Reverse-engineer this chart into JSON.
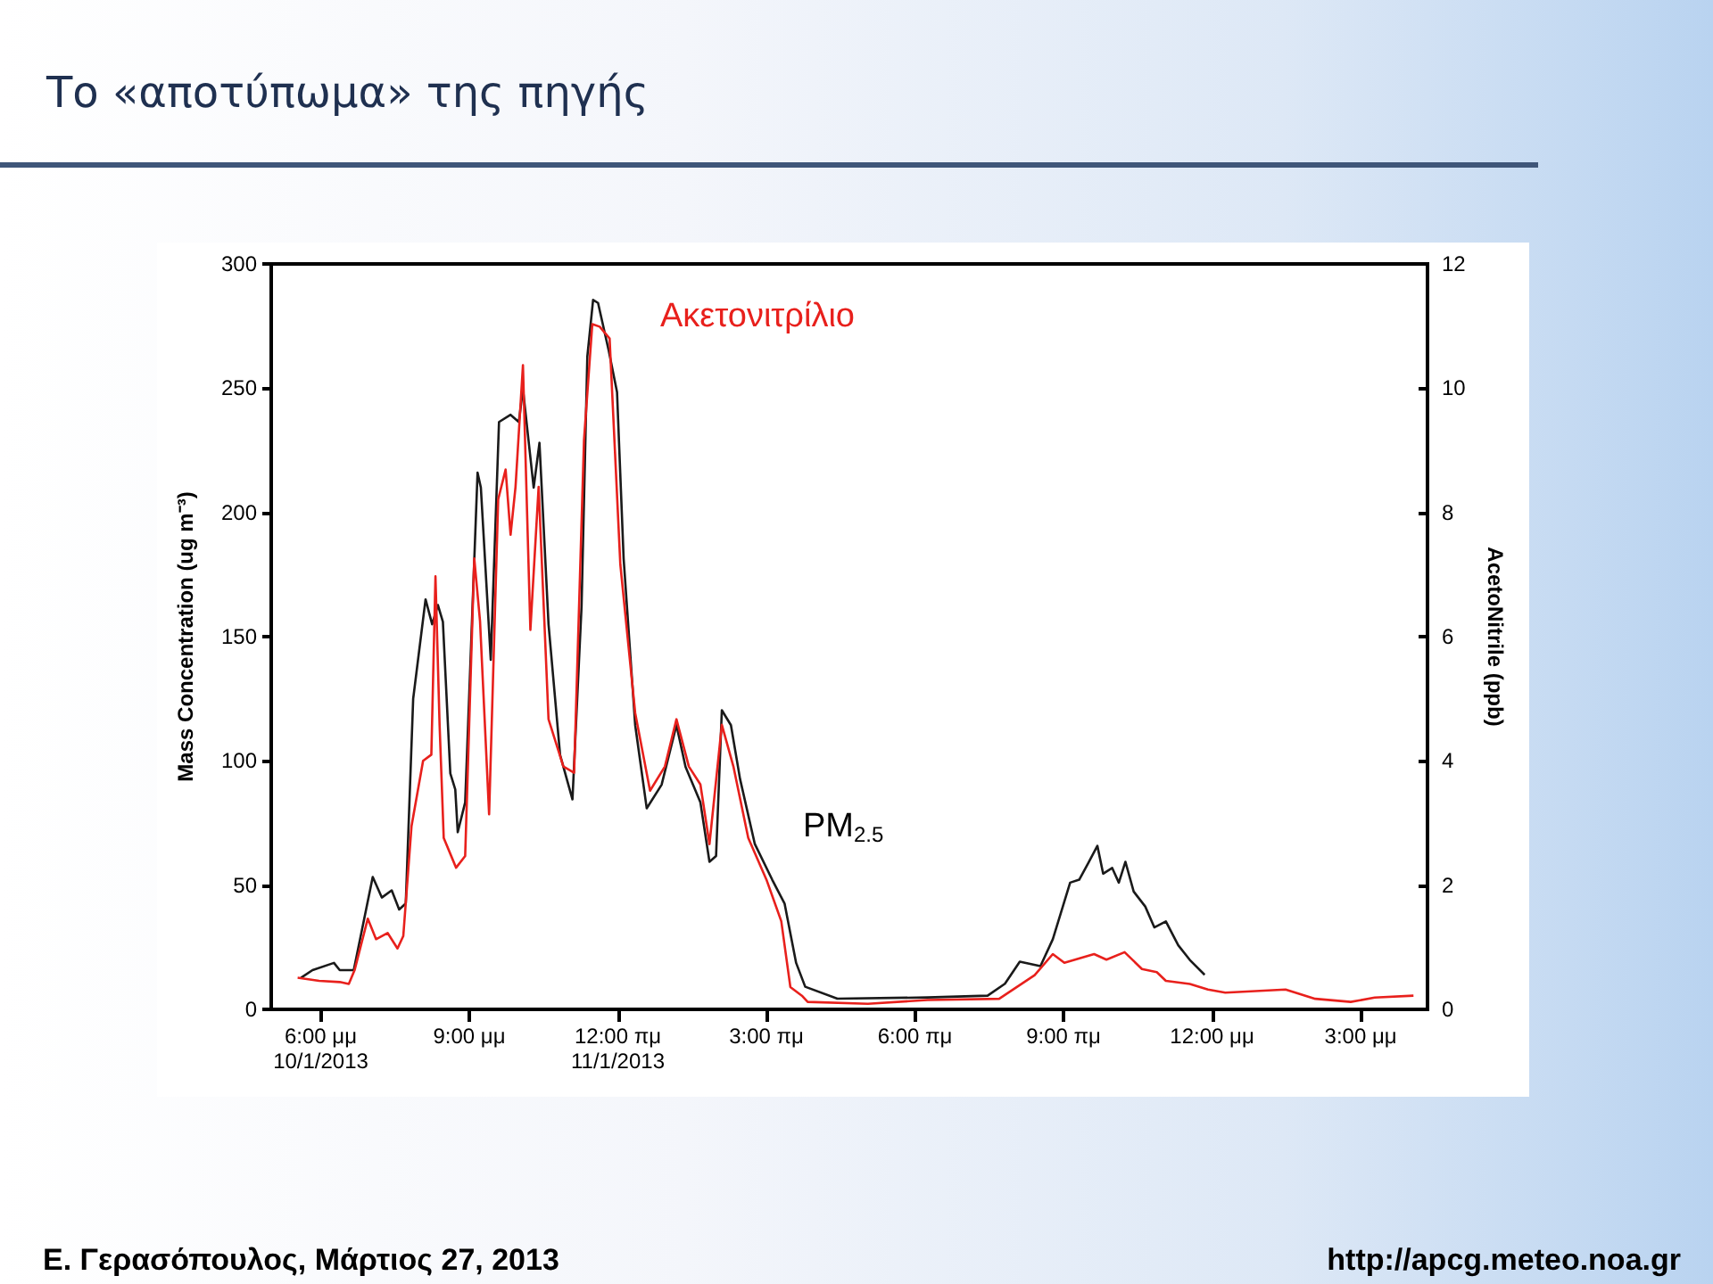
{
  "chart_data": {
    "type": "line",
    "title": "Το «αποτύπωμα» της πηγής",
    "ylabel": "Mass Concentration (ug m⁻³)",
    "y2label": "AcetoNitrile (ppb)",
    "annotations": [
      "Ε. Γερασόπουλος, Μάρτιος 27, 2013",
      "http://apcg.meteo.noa.gr"
    ],
    "xlim": [
      "2013-01-10T17:00",
      "2013-01-11T16:21"
    ],
    "xticks": [
      {
        "value": "2013-01-10T18:00",
        "label": "6:00 μμ\n10/1/2013"
      },
      {
        "value": "2013-01-10T21:00",
        "label": "9:00 μμ"
      },
      {
        "value": "2013-01-11T00:00",
        "label": "12:00 πμ\n11/1/2013"
      },
      {
        "value": "2013-01-11T03:00",
        "label": "3:00 πμ"
      },
      {
        "value": "2013-01-11T06:00",
        "label": "6:00 πμ"
      },
      {
        "value": "2013-01-11T09:00",
        "label": "9:00 πμ"
      },
      {
        "value": "2013-01-11T12:00",
        "label": "12:00 μμ"
      },
      {
        "value": "2013-01-11T15:00",
        "label": "3:00 μμ"
      }
    ],
    "ylim": [
      0,
      300
    ],
    "yticks": [
      0,
      50,
      100,
      150,
      200,
      250,
      300
    ],
    "y2lim": [
      0,
      12
    ],
    "y2ticks": [
      0,
      2,
      4,
      6,
      8,
      10,
      12
    ],
    "grid": false,
    "legend": false,
    "marker": "none",
    "line_style": "solid",
    "series": [
      {
        "name": "PM$_{2.5}$",
        "color": "#1a1a1a",
        "x": [
          "2013-01-10T17:36",
          "2013-01-10T17:50",
          "2013-01-10T18:16",
          "2013-01-10T18:23",
          "2013-01-10T18:40",
          "2013-01-10T19:03",
          "2013-01-10T19:14",
          "2013-01-10T19:26",
          "2013-01-10T19:35",
          "2013-01-10T19:43",
          "2013-01-10T19:52",
          "2013-01-10T20:07",
          "2013-01-10T20:15",
          "2013-01-10T20:22",
          "2013-01-10T20:28",
          "2013-01-10T20:37",
          "2013-01-10T20:43",
          "2013-01-10T20:46",
          "2013-01-10T20:55",
          "2013-01-10T21:10",
          "2013-01-10T21:14",
          "2013-01-10T21:26",
          "2013-01-10T21:36",
          "2013-01-10T21:50",
          "2013-01-10T22:00",
          "2013-01-10T22:05",
          "2013-01-10T22:18",
          "2013-01-10T22:25",
          "2013-01-10T22:36",
          "2013-01-10T22:50",
          "2013-01-10T23:05",
          "2013-01-10T23:16",
          "2013-01-10T23:23",
          "2013-01-10T23:30",
          "2013-01-10T23:36",
          "2013-01-10T23:49",
          "2013-01-10T23:59",
          "2013-01-11T00:07",
          "2013-01-11T00:21",
          "2013-01-11T00:35",
          "2013-01-11T00:53",
          "2013-01-11T01:11",
          "2013-01-11T01:22",
          "2013-01-11T01:40",
          "2013-01-11T01:51",
          "2013-01-11T01:59",
          "2013-01-11T02:06",
          "2013-01-11T02:17",
          "2013-01-11T02:28",
          "2013-01-11T02:46",
          "2013-01-11T03:07",
          "2013-01-11T03:22",
          "2013-01-11T03:36",
          "2013-01-11T03:47",
          "2013-01-11T04:26",
          "2013-01-11T06:15",
          "2013-01-11T07:28",
          "2013-01-11T07:49",
          "2013-01-11T08:07",
          "2013-01-11T08:32",
          "2013-01-11T08:47",
          "2013-01-11T09:08",
          "2013-01-11T09:19",
          "2013-01-11T09:30",
          "2013-01-11T09:41",
          "2013-01-11T09:48",
          "2013-01-11T09:59",
          "2013-01-11T10:07",
          "2013-01-11T10:15",
          "2013-01-11T10:25",
          "2013-01-11T10:39",
          "2013-01-11T10:50",
          "2013-01-11T11:04",
          "2013-01-11T11:19",
          "2013-01-11T11:33",
          "2013-01-11T11:51"
        ],
        "values": [
          12.7,
          15.8,
          18.7,
          15.8,
          15.8,
          53.3,
          45.0,
          47.9,
          40.2,
          42.6,
          125.0,
          165.0,
          155.0,
          162.7,
          156.0,
          95.0,
          88.5,
          71.3,
          83.3,
          216.0,
          210.0,
          140.7,
          236.4,
          239.3,
          236.4,
          249.6,
          210.0,
          228.0,
          155.0,
          102.4,
          84.5,
          162.0,
          262.7,
          285.5,
          284.3,
          265.0,
          248.4,
          181.4,
          114.4,
          80.9,
          90.4,
          114.4,
          97.6,
          83.3,
          59.4,
          61.7,
          120.4,
          114.4,
          92.8,
          66.5,
          52.2,
          42.6,
          18.7,
          9.1,
          4.3,
          4.8,
          5.5,
          10.3,
          19.2,
          17.4,
          28.2,
          51.0,
          52.2,
          58.9,
          65.8,
          54.6,
          56.9,
          51.0,
          59.4,
          47.4,
          41.4,
          33.0,
          35.4,
          25.8,
          19.9,
          13.9
        ]
      },
      {
        "name": "Ακετονιτρίλιο",
        "color": "#e8201c",
        "axis": "y2",
        "x": [
          "2013-01-10T17:32",
          "2013-01-10T17:58",
          "2013-01-10T18:23",
          "2013-01-10T18:34",
          "2013-01-10T18:41",
          "2013-01-10T18:57",
          "2013-01-10T19:07",
          "2013-01-10T19:21",
          "2013-01-10T19:33",
          "2013-01-10T19:40",
          "2013-01-10T19:50",
          "2013-01-10T20:04",
          "2013-01-10T20:14",
          "2013-01-10T20:19",
          "2013-01-10T20:24",
          "2013-01-10T20:29",
          "2013-01-10T20:44",
          "2013-01-10T20:55",
          "2013-01-10T21:06",
          "2013-01-10T21:13",
          "2013-01-10T21:24",
          "2013-01-10T21:35",
          "2013-01-10T21:44",
          "2013-01-10T21:50",
          "2013-01-10T21:56",
          "2013-01-10T22:05",
          "2013-01-10T22:14",
          "2013-01-10T22:24",
          "2013-01-10T22:36",
          "2013-01-10T22:54",
          "2013-01-10T23:07",
          "2013-01-10T23:19",
          "2013-01-10T23:29",
          "2013-01-10T23:38",
          "2013-01-10T23:50",
          "2013-01-11T00:03",
          "2013-01-11T00:21",
          "2013-01-11T00:39",
          "2013-01-11T00:57",
          "2013-01-11T01:11",
          "2013-01-11T01:26",
          "2013-01-11T01:40",
          "2013-01-11T01:51",
          "2013-01-11T02:06",
          "2013-01-11T02:20",
          "2013-01-11T02:38",
          "2013-01-11T03:00",
          "2013-01-11T03:18",
          "2013-01-11T03:29",
          "2013-01-11T03:43",
          "2013-01-11T03:50",
          "2013-01-11T05:03",
          "2013-01-11T06:15",
          "2013-01-11T07:42",
          "2013-01-11T08:25",
          "2013-01-11T08:47",
          "2013-01-11T09:01",
          "2013-01-11T09:37",
          "2013-01-11T09:52",
          "2013-01-11T10:14",
          "2013-01-11T10:35",
          "2013-01-11T10:53",
          "2013-01-11T11:04",
          "2013-01-11T11:33",
          "2013-01-11T11:55",
          "2013-01-11T12:16",
          "2013-01-11T13:29",
          "2013-01-11T14:05",
          "2013-01-11T14:48",
          "2013-01-11T15:17",
          "2013-01-11T16:04"
        ],
        "values": [
          0.51,
          0.46,
          0.44,
          0.41,
          0.63,
          1.46,
          1.13,
          1.23,
          0.98,
          1.18,
          2.95,
          4.0,
          4.1,
          6.97,
          4.58,
          2.76,
          2.28,
          2.47,
          7.26,
          6.25,
          3.14,
          8.21,
          8.69,
          7.64,
          8.41,
          10.37,
          6.11,
          8.41,
          4.67,
          3.91,
          3.81,
          9.17,
          11.03,
          10.99,
          10.8,
          7.16,
          4.77,
          3.52,
          3.91,
          4.67,
          3.91,
          3.62,
          2.66,
          4.58,
          3.91,
          2.76,
          2.09,
          1.42,
          0.36,
          0.22,
          0.12,
          0.09,
          0.15,
          0.17,
          0.55,
          0.89,
          0.75,
          0.89,
          0.8,
          0.92,
          0.65,
          0.6,
          0.46,
          0.41,
          0.32,
          0.27,
          0.32,
          0.17,
          0.12,
          0.19,
          0.22
        ]
      }
    ]
  }
}
